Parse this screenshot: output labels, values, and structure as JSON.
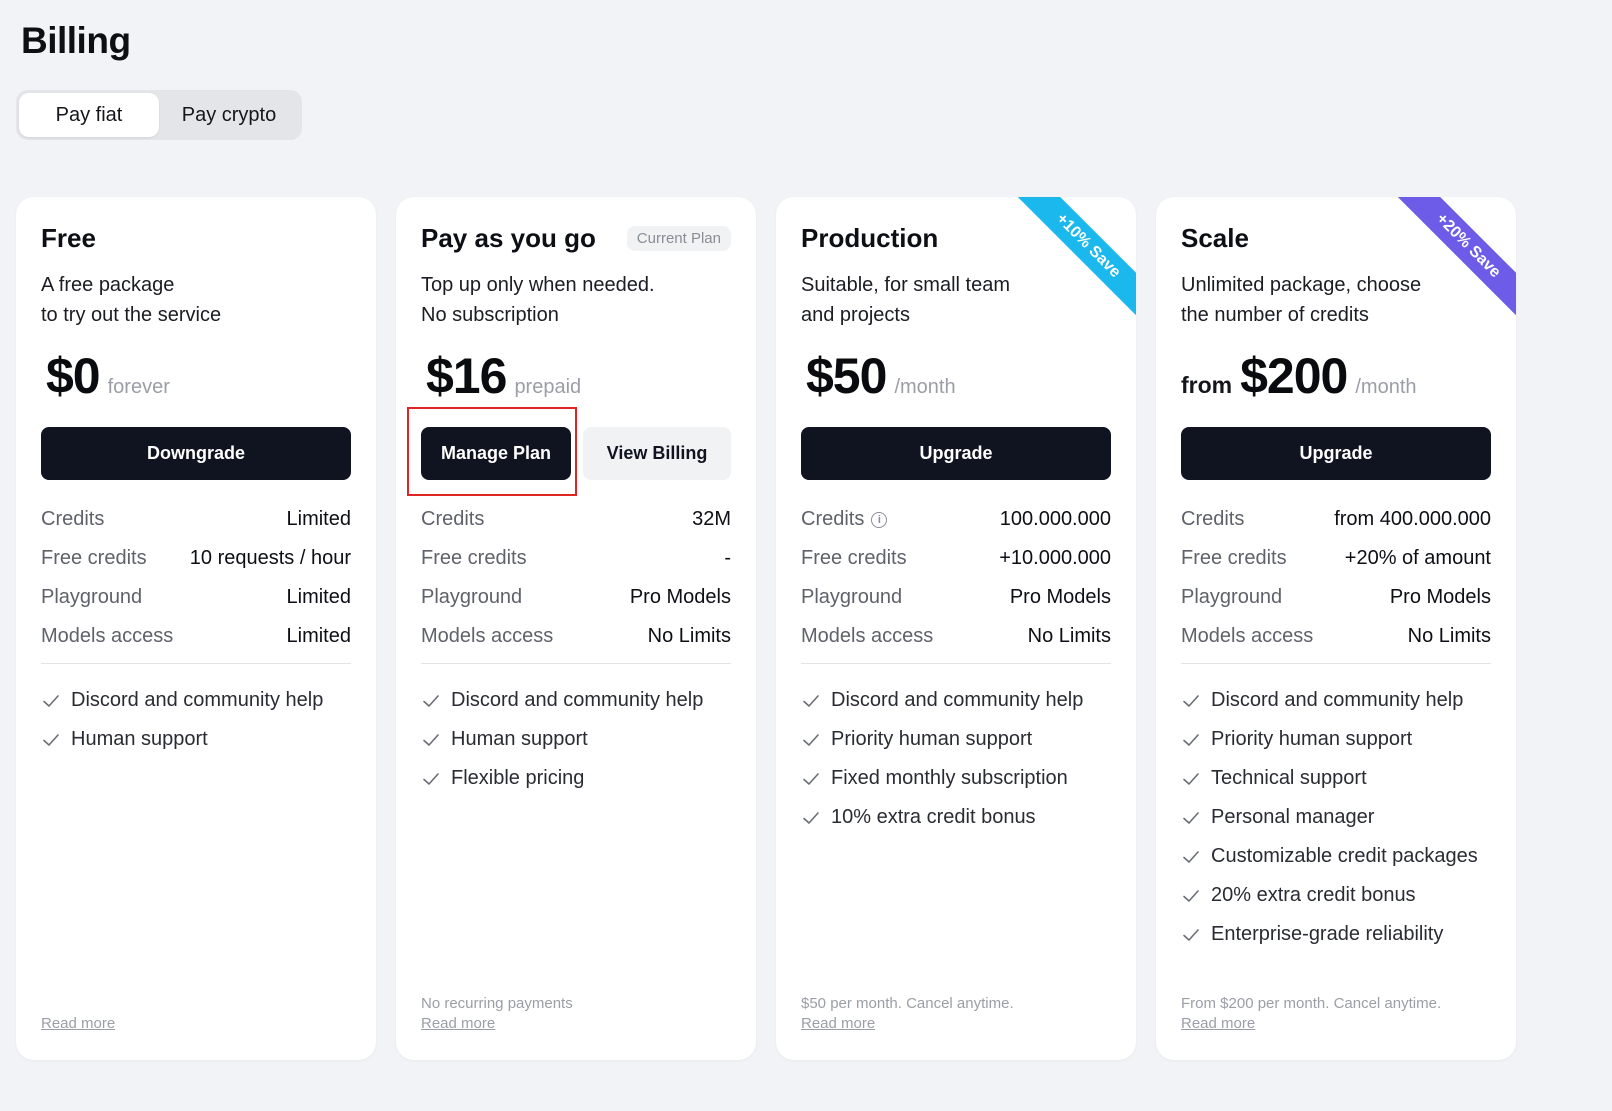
{
  "page_title": "Billing",
  "pay_toggle": {
    "fiat": "Pay fiat",
    "crypto": "Pay crypto",
    "selected": "Pay fiat"
  },
  "plans": [
    {
      "name": "Free",
      "desc_line1": "A free package",
      "desc_line2": "to try out the service",
      "price_prefix": "",
      "price": "$0",
      "price_unit": "forever",
      "button": "Downgrade",
      "specs": [
        {
          "label": "Credits",
          "value": "Limited"
        },
        {
          "label": "Free credits",
          "value": "10 requests / hour"
        },
        {
          "label": "Playground",
          "value": "Limited"
        },
        {
          "label": "Models access",
          "value": "Limited"
        }
      ],
      "features": [
        "Discord and community help",
        "Human support"
      ],
      "footer_note": "",
      "read_more": "Read more"
    },
    {
      "name": "Pay as you go",
      "badge": "Current Plan",
      "desc_line1": "Top up only when needed.",
      "desc_line2": "No subscription",
      "price_prefix": "",
      "price": "$16",
      "price_unit": "prepaid",
      "button": "Manage Plan",
      "button_secondary": "View Billing",
      "specs": [
        {
          "label": "Credits",
          "value": "32M"
        },
        {
          "label": "Free credits",
          "value": "-"
        },
        {
          "label": "Playground",
          "value": "Pro Models"
        },
        {
          "label": "Models access",
          "value": "No Limits"
        }
      ],
      "features": [
        "Discord and community help",
        "Human support",
        "Flexible pricing"
      ],
      "footer_note": "No recurring payments",
      "read_more": "Read more"
    },
    {
      "name": "Production",
      "ribbon": "+10% Save",
      "ribbon_color": "#1bb8ee",
      "desc_line1": "Suitable, for small team",
      "desc_line2": "and projects",
      "price_prefix": "",
      "price": "$50",
      "price_unit": "/month",
      "button": "Upgrade",
      "specs": [
        {
          "label": "Credits",
          "value": "100.000.000",
          "info": true
        },
        {
          "label": "Free credits",
          "value": "+10.000.000"
        },
        {
          "label": "Playground",
          "value": "Pro Models"
        },
        {
          "label": "Models access",
          "value": "No Limits"
        }
      ],
      "features": [
        "Discord and community help",
        "Priority human support",
        "Fixed monthly subscription",
        "10% extra credit bonus"
      ],
      "footer_note": "$50 per month. Cancel anytime.",
      "read_more": "Read more"
    },
    {
      "name": "Scale",
      "ribbon": "+20% Save",
      "ribbon_color": "#6c5ce7",
      "desc_line1": "Unlimited package, choose",
      "desc_line2": "the number of credits",
      "price_prefix": "from",
      "price": "$200",
      "price_unit": "/month",
      "button": "Upgrade",
      "specs": [
        {
          "label": "Credits",
          "value": "from 400.000.000"
        },
        {
          "label": "Free credits",
          "value": "+20% of amount"
        },
        {
          "label": "Playground",
          "value": "Pro Models"
        },
        {
          "label": "Models access",
          "value": "No Limits"
        }
      ],
      "features": [
        "Discord and community help",
        "Priority human support",
        "Technical support",
        "Personal manager",
        "Customizable credit packages",
        "20% extra credit bonus",
        "Enterprise-grade reliability"
      ],
      "footer_note": "From $200 per month. Cancel anytime.",
      "read_more": "Read more"
    }
  ]
}
